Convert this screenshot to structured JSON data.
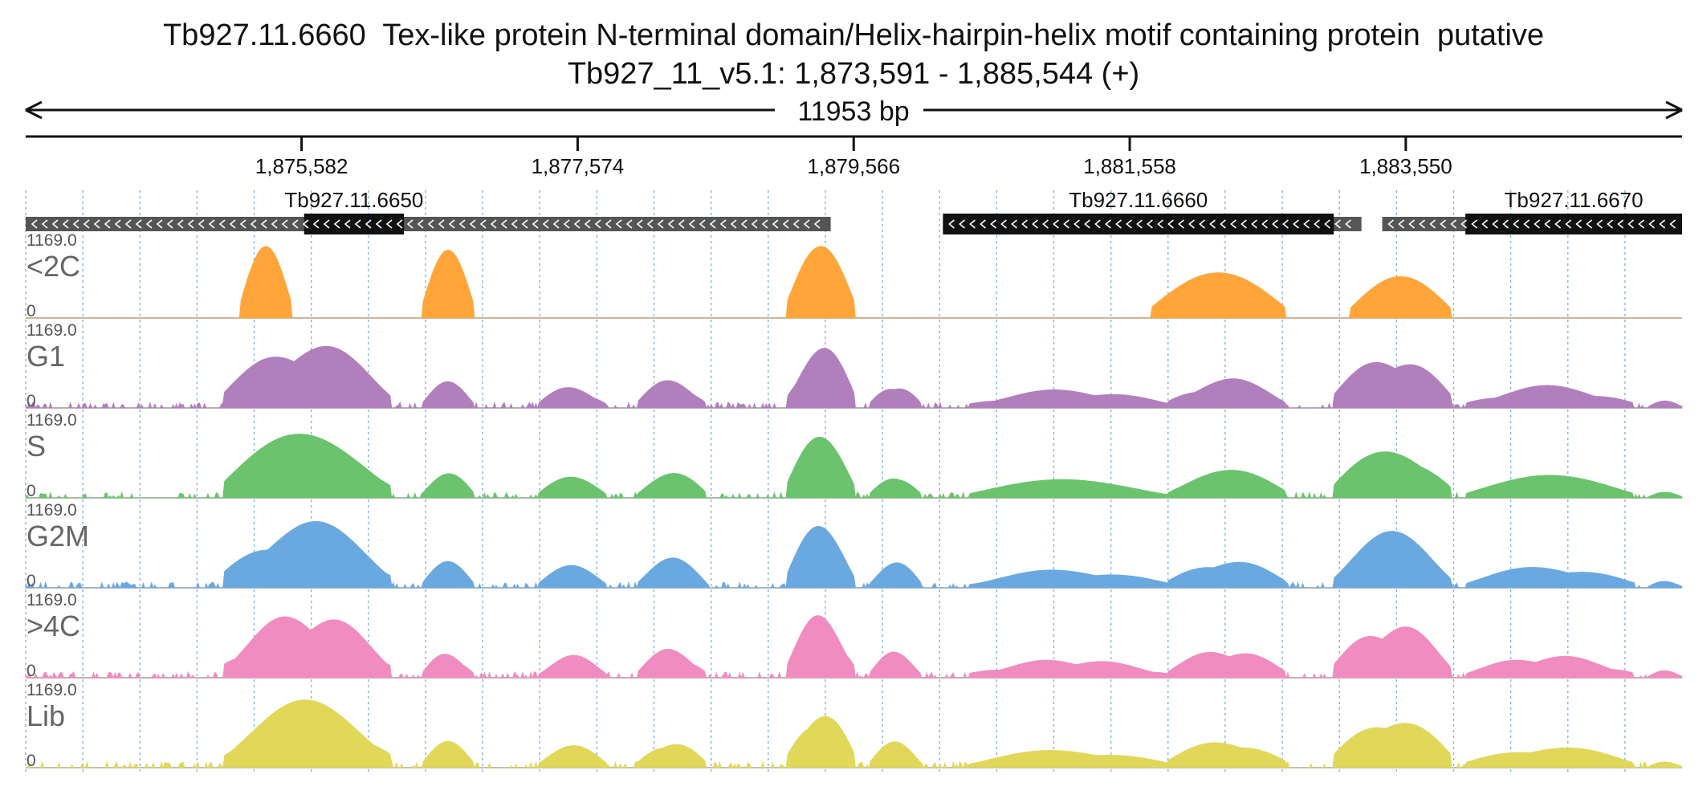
{
  "header": {
    "title_line1": "Tb927.11.6660  Tex-like protein N-terminal domain/Helix-hairpin-helix motif containing protein  putative",
    "title_line2": "Tb927_11_v5.1: 1,873,591 - 1,885,544 (+)"
  },
  "span": {
    "label": "11953 bp"
  },
  "coordinates": {
    "start": 1873591,
    "end": 1885544
  },
  "ruler": {
    "ticks": [
      "1,875,582",
      "1,877,574",
      "1,879,566",
      "1,881,558",
      "1,883,550"
    ]
  },
  "genes": [
    {
      "name": "Tb927.11.6650",
      "strand": "-",
      "start": 1873591,
      "end": 1879400,
      "cds": [
        1875600,
        1876320
      ]
    },
    {
      "name": "Tb927.11.6660",
      "strand": "-",
      "start": 1880210,
      "end": 1883230,
      "cds": [
        1880210,
        1883030
      ]
    },
    {
      "name": "Tb927.11.6670",
      "strand": "-",
      "start": 1883380,
      "end": 1885544,
      "cds": [
        1883980,
        1885544
      ]
    }
  ],
  "tracks": [
    {
      "name": "<2C",
      "color": "#ffa53a",
      "max_label": "1169.0",
      "min_label": "0"
    },
    {
      "name": "G1",
      "color": "#b27fbd",
      "max_label": "1169.0",
      "min_label": "0"
    },
    {
      "name": "S",
      "color": "#6bc46d",
      "max_label": "1169.0",
      "min_label": "0"
    },
    {
      "name": "G2M",
      "color": "#6aa9e0",
      "max_label": "1169.0",
      "min_label": "0"
    },
    {
      "name": ">4C",
      "color": "#f08cbf",
      "max_label": "1169.0",
      "min_label": "0"
    },
    {
      "name": "Lib",
      "color": "#e1d85a",
      "max_label": "1169.0",
      "min_label": "0"
    }
  ],
  "colors": {
    "clipped": "#e03030",
    "gene_bar": "#555555",
    "cds_bar": "#111111",
    "grid": "#7fb3e0"
  }
}
